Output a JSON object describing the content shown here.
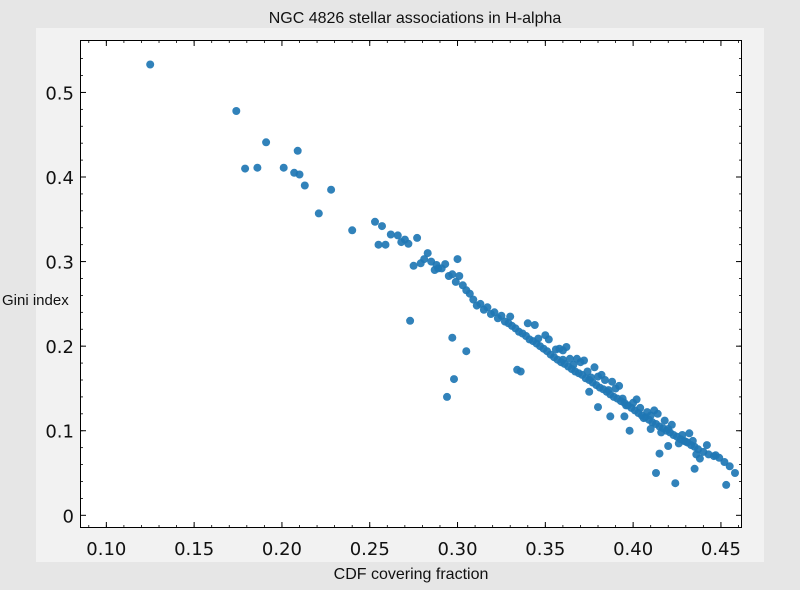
{
  "chart_data": {
    "type": "scatter",
    "title": "NGC 4826 stellar associations in H-alpha",
    "xlabel": "CDF covering fraction",
    "ylabel": "Gini index",
    "xlim": [
      0.085,
      0.462
    ],
    "ylim": [
      -0.015,
      0.562
    ],
    "xticks": [
      0.1,
      0.15,
      0.2,
      0.25,
      0.3,
      0.35,
      0.4,
      0.45
    ],
    "xtick_labels": [
      "0.10",
      "0.15",
      "0.20",
      "0.25",
      "0.30",
      "0.35",
      "0.40",
      "0.45"
    ],
    "yticks": [
      0,
      0.1,
      0.2,
      0.3,
      0.4,
      0.5
    ],
    "ytick_labels": [
      "0",
      "0.1",
      "0.2",
      "0.3",
      "0.4",
      "0.5"
    ],
    "grid": false,
    "marker_color": "#1f77b4",
    "series": [
      {
        "x": [
          0.125,
          0.174,
          0.179,
          0.186,
          0.191,
          0.201,
          0.207,
          0.209,
          0.21,
          0.213,
          0.221,
          0.228,
          0.24,
          0.253,
          0.255,
          0.257,
          0.259,
          0.262,
          0.266,
          0.268,
          0.27,
          0.272,
          0.275,
          0.277,
          0.279,
          0.281,
          0.283,
          0.285,
          0.287,
          0.289,
          0.291,
          0.293,
          0.295,
          0.297,
          0.299,
          0.301,
          0.303,
          0.305,
          0.307,
          0.309,
          0.311,
          0.313,
          0.315,
          0.317,
          0.319,
          0.321,
          0.323,
          0.325,
          0.327,
          0.329,
          0.331,
          0.333,
          0.335,
          0.337,
          0.339,
          0.341,
          0.343,
          0.345,
          0.347,
          0.349,
          0.351,
          0.353,
          0.355,
          0.357,
          0.359,
          0.361,
          0.363,
          0.365,
          0.367,
          0.369,
          0.371,
          0.373,
          0.375,
          0.377,
          0.379,
          0.381,
          0.383,
          0.385,
          0.387,
          0.389,
          0.391,
          0.393,
          0.395,
          0.397,
          0.399,
          0.401,
          0.403,
          0.405,
          0.407,
          0.409,
          0.411,
          0.413,
          0.415,
          0.417,
          0.419,
          0.421,
          0.423,
          0.425,
          0.427,
          0.429,
          0.431,
          0.433,
          0.435,
          0.437,
          0.44,
          0.443,
          0.446,
          0.449,
          0.452,
          0.455,
          0.458,
          0.273,
          0.297,
          0.305,
          0.294,
          0.298,
          0.334,
          0.336,
          0.36,
          0.375,
          0.38,
          0.387,
          0.41,
          0.424,
          0.413,
          0.415,
          0.42,
          0.435,
          0.438,
          0.447,
          0.453,
          0.398,
          0.395,
          0.288,
          0.3,
          0.33,
          0.344,
          0.352,
          0.362,
          0.372,
          0.382,
          0.392,
          0.402,
          0.412,
          0.422,
          0.432,
          0.442,
          0.34,
          0.35,
          0.36,
          0.37,
          0.38,
          0.39,
          0.4,
          0.41,
          0.42,
          0.43,
          0.356,
          0.366,
          0.376,
          0.386,
          0.396,
          0.406,
          0.416,
          0.426,
          0.436,
          0.346,
          0.368,
          0.384,
          0.404,
          0.418,
          0.428,
          0.378,
          0.388,
          0.358,
          0.394,
          0.414,
          0.364,
          0.374,
          0.408,
          0.434
        ],
        "y": [
          0.533,
          0.478,
          0.41,
          0.411,
          0.441,
          0.411,
          0.405,
          0.431,
          0.403,
          0.39,
          0.357,
          0.385,
          0.337,
          0.347,
          0.32,
          0.342,
          0.32,
          0.332,
          0.331,
          0.323,
          0.326,
          0.321,
          0.295,
          0.328,
          0.298,
          0.303,
          0.31,
          0.3,
          0.29,
          0.292,
          0.292,
          0.297,
          0.283,
          0.285,
          0.276,
          0.283,
          0.272,
          0.266,
          0.262,
          0.255,
          0.248,
          0.25,
          0.243,
          0.246,
          0.238,
          0.24,
          0.233,
          0.236,
          0.229,
          0.227,
          0.224,
          0.221,
          0.217,
          0.215,
          0.212,
          0.208,
          0.206,
          0.203,
          0.2,
          0.197,
          0.194,
          0.19,
          0.187,
          0.184,
          0.181,
          0.179,
          0.176,
          0.173,
          0.17,
          0.168,
          0.166,
          0.162,
          0.16,
          0.157,
          0.154,
          0.151,
          0.149,
          0.146,
          0.143,
          0.14,
          0.138,
          0.135,
          0.133,
          0.13,
          0.127,
          0.124,
          0.121,
          0.118,
          0.116,
          0.113,
          0.11,
          0.108,
          0.105,
          0.103,
          0.1,
          0.098,
          0.095,
          0.093,
          0.09,
          0.088,
          0.086,
          0.083,
          0.081,
          0.078,
          0.075,
          0.072,
          0.07,
          0.068,
          0.063,
          0.058,
          0.05,
          0.23,
          0.21,
          0.194,
          0.14,
          0.161,
          0.172,
          0.17,
          0.184,
          0.146,
          0.128,
          0.117,
          0.102,
          0.038,
          0.05,
          0.073,
          0.082,
          0.055,
          0.067,
          0.071,
          0.036,
          0.1,
          0.117,
          0.296,
          0.303,
          0.235,
          0.225,
          0.208,
          0.199,
          0.183,
          0.166,
          0.153,
          0.137,
          0.124,
          0.107,
          0.097,
          0.083,
          0.227,
          0.213,
          0.195,
          0.181,
          0.164,
          0.15,
          0.133,
          0.118,
          0.102,
          0.087,
          0.196,
          0.178,
          0.163,
          0.148,
          0.13,
          0.115,
          0.098,
          0.085,
          0.072,
          0.209,
          0.185,
          0.16,
          0.127,
          0.112,
          0.095,
          0.175,
          0.158,
          0.197,
          0.138,
          0.12,
          0.185,
          0.17,
          0.122,
          0.088
        ]
      }
    ]
  }
}
